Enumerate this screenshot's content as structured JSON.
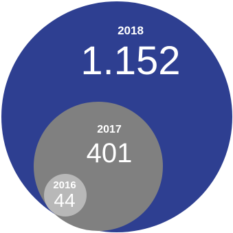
{
  "chart_data": {
    "type": "nested-bubble",
    "series": [
      {
        "category": "2018",
        "value_label": "1.152",
        "value": 1152,
        "color": "#2e3f91"
      },
      {
        "category": "2017",
        "value_label": "401",
        "value": 401,
        "color": "#808080"
      },
      {
        "category": "2016",
        "value_label": "44",
        "value": 44,
        "color": "#b8b8b8"
      }
    ]
  }
}
